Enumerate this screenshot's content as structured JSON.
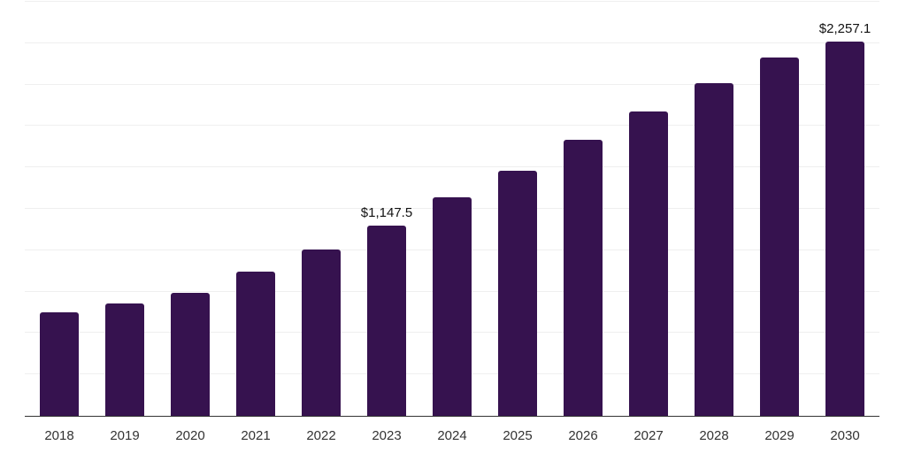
{
  "chart_data": {
    "type": "bar",
    "title": "",
    "xlabel": "",
    "ylabel": "",
    "categories": [
      "2018",
      "2019",
      "2020",
      "2021",
      "2022",
      "2023",
      "2024",
      "2025",
      "2026",
      "2027",
      "2028",
      "2029",
      "2030"
    ],
    "values": [
      625,
      676,
      742,
      873,
      1002,
      1147.5,
      1317,
      1480,
      1667,
      1840,
      2011,
      2161,
      2257.1
    ],
    "data_labels": {
      "2023": "$1,147.5",
      "2030": "$2,257.1"
    },
    "ylim": [
      0,
      2500
    ],
    "gridline_interval": 250,
    "grid": "horizontal, light gray, no y-axis tick labels",
    "legend_position": "none",
    "colors": {
      "bar": "#36124F",
      "gridline": "#efefef",
      "axis_line": "#333333",
      "tick_label": "#333333",
      "data_label": "#111111",
      "background": "#ffffff"
    }
  }
}
